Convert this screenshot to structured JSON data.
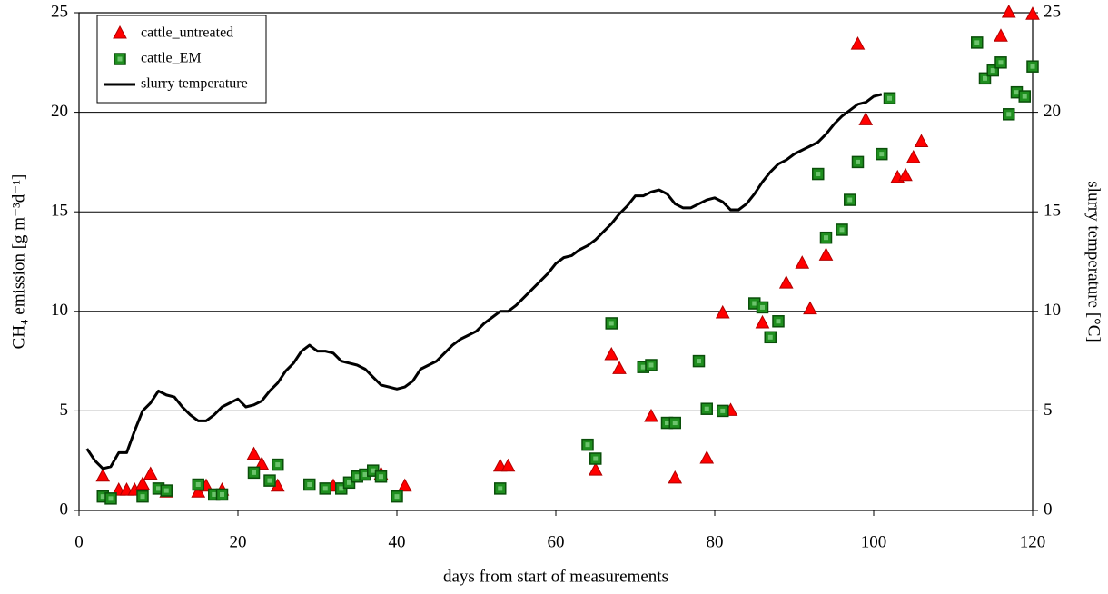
{
  "chart_data": {
    "type": "scatter",
    "xlabel": "days from start of measurements",
    "ylabel": "CH₄ emission [g m⁻³d⁻¹]",
    "y2label": "slurry temperature [°C]",
    "xlim": [
      0,
      120
    ],
    "xticks": [
      0,
      20,
      40,
      60,
      80,
      100,
      120
    ],
    "ylim": [
      0,
      25
    ],
    "yticks": [
      0,
      5,
      10,
      15,
      20,
      25
    ],
    "y2lim": [
      0,
      25
    ],
    "y2ticks": [
      0,
      5,
      10,
      15,
      20,
      25
    ],
    "grid": true,
    "legend": "upper left",
    "series": [
      {
        "name": "cattle_untreated",
        "type": "scatter",
        "marker": "triangle",
        "color": "#ff0000",
        "x": [
          3,
          5,
          6,
          7,
          8,
          9,
          11,
          15,
          16,
          18,
          22,
          23,
          25,
          32,
          38,
          41,
          53,
          54,
          65,
          67,
          68,
          72,
          75,
          79,
          81,
          82,
          86,
          89,
          91,
          92,
          94,
          98,
          99,
          103,
          104,
          105,
          106,
          116,
          117,
          120
        ],
        "values": [
          1.7,
          1.0,
          1.0,
          1.0,
          1.3,
          1.8,
          0.9,
          0.9,
          1.2,
          1.0,
          2.8,
          2.3,
          1.2,
          1.2,
          1.8,
          1.2,
          2.2,
          2.2,
          2.0,
          7.8,
          7.1,
          4.7,
          1.6,
          2.6,
          9.9,
          5.0,
          9.4,
          11.4,
          12.4,
          10.1,
          12.8,
          23.4,
          19.6,
          16.7,
          16.8,
          17.7,
          18.5,
          23.8,
          25.0,
          24.9
        ]
      },
      {
        "name": "cattle_EM",
        "type": "scatter",
        "marker": "square",
        "color": "#1f8f1f",
        "x": [
          3,
          4,
          8,
          10,
          11,
          15,
          17,
          18,
          22,
          24,
          25,
          29,
          31,
          33,
          34,
          35,
          36,
          37,
          38,
          40,
          53,
          64,
          65,
          67,
          71,
          72,
          74,
          75,
          78,
          79,
          81,
          85,
          86,
          87,
          88,
          93,
          94,
          96,
          97,
          98,
          101,
          102,
          113,
          114,
          115,
          116,
          117,
          118,
          119,
          120
        ],
        "values": [
          0.7,
          0.6,
          0.7,
          1.1,
          1.0,
          1.3,
          0.8,
          0.8,
          1.9,
          1.5,
          2.3,
          1.3,
          1.1,
          1.1,
          1.4,
          1.7,
          1.8,
          2.0,
          1.7,
          0.7,
          1.1,
          3.3,
          2.6,
          9.4,
          7.2,
          7.3,
          4.4,
          4.4,
          7.5,
          5.1,
          5.0,
          10.4,
          10.2,
          8.7,
          9.5,
          16.9,
          13.7,
          14.1,
          15.6,
          17.5,
          17.9,
          20.7,
          23.5,
          21.7,
          22.1,
          22.5,
          19.9,
          21.0,
          20.8,
          22.3
        ]
      },
      {
        "name": "slurry temperature",
        "type": "line",
        "axis": "y2",
        "color": "#000000",
        "x": [
          1,
          2,
          3,
          4,
          5,
          6,
          7,
          8,
          9,
          10,
          11,
          12,
          13,
          14,
          15,
          16,
          17,
          18,
          19,
          20,
          21,
          22,
          23,
          24,
          25,
          26,
          27,
          28,
          29,
          30,
          31,
          32,
          33,
          34,
          35,
          36,
          37,
          38,
          39,
          40,
          41,
          42,
          43,
          44,
          45,
          46,
          47,
          48,
          49,
          50,
          51,
          52,
          53,
          54,
          55,
          56,
          57,
          58,
          59,
          60,
          61,
          62,
          63,
          64,
          65,
          66,
          67,
          68,
          69,
          70,
          71,
          72,
          73,
          74,
          75,
          76,
          77,
          78,
          79,
          80,
          81,
          82,
          83,
          84,
          85,
          86,
          87,
          88,
          89,
          90,
          91,
          92,
          93,
          94,
          95,
          96,
          97,
          98,
          99,
          100,
          101
        ],
        "values": [
          3.1,
          2.5,
          2.1,
          2.2,
          2.9,
          2.9,
          4.0,
          5.0,
          5.4,
          6.0,
          5.8,
          5.7,
          5.2,
          4.8,
          4.5,
          4.5,
          4.8,
          5.2,
          5.4,
          5.6,
          5.2,
          5.3,
          5.5,
          6.0,
          6.4,
          7.0,
          7.4,
          8.0,
          8.3,
          8.0,
          8.0,
          7.9,
          7.5,
          7.4,
          7.3,
          7.1,
          6.7,
          6.3,
          6.2,
          6.1,
          6.2,
          6.5,
          7.1,
          7.3,
          7.5,
          7.9,
          8.3,
          8.6,
          8.8,
          9.0,
          9.4,
          9.7,
          10.0,
          10.0,
          10.3,
          10.7,
          11.1,
          11.5,
          11.9,
          12.4,
          12.7,
          12.8,
          13.1,
          13.3,
          13.6,
          14.0,
          14.4,
          14.9,
          15.3,
          15.8,
          15.8,
          16.0,
          16.1,
          15.9,
          15.4,
          15.2,
          15.2,
          15.4,
          15.6,
          15.7,
          15.5,
          15.1,
          15.1,
          15.4,
          15.9,
          16.5,
          17.0,
          17.4,
          17.6,
          17.9,
          18.1,
          18.3,
          18.5,
          18.9,
          19.4,
          19.8,
          20.1,
          20.4,
          20.5,
          20.8,
          20.9
        ]
      }
    ]
  }
}
